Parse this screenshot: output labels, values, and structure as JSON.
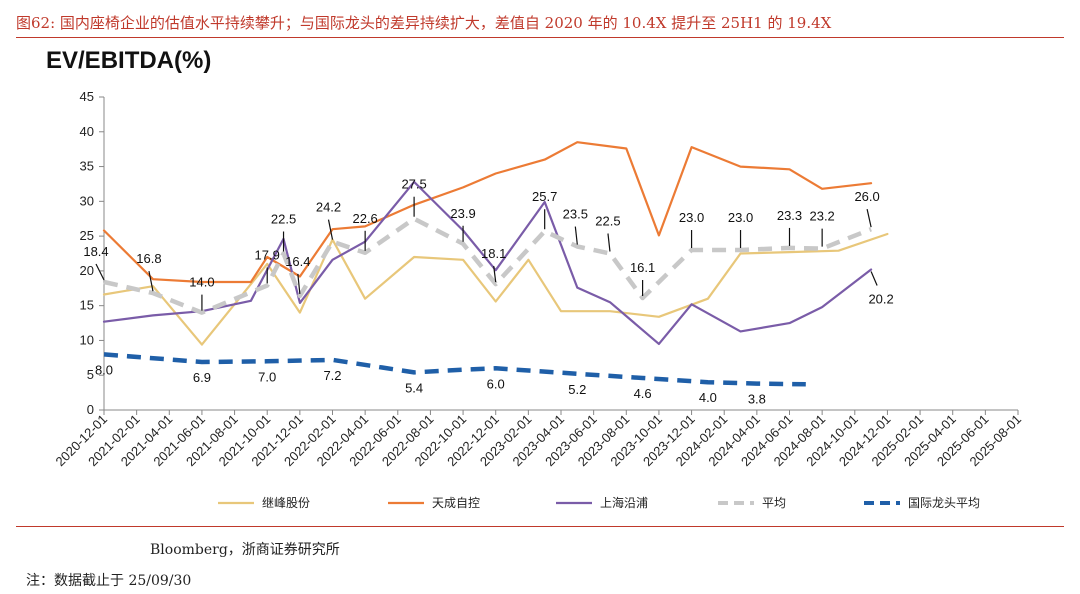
{
  "figure": {
    "title": "图62:  国内座椅企业的估值水平持续攀升；与国际龙头的差异持续扩大，差值自 2020 年的 10.4X 提升至 25H1 的 19.4X",
    "source": "Bloomberg，浙商证券研究所",
    "note": "注：数据截止于 25/09/30"
  },
  "chart_data": {
    "type": "line",
    "title": "EV/EBITDA(%)",
    "ylim": [
      0,
      45
    ],
    "yticks": [
      0,
      5,
      10,
      15,
      20,
      25,
      30,
      35,
      40,
      45
    ],
    "categories": [
      "2020-12-01",
      "2021-02-01",
      "2021-04-01",
      "2021-06-01",
      "2021-08-01",
      "2021-10-01",
      "2021-12-01",
      "2022-02-01",
      "2022-04-01",
      "2022-06-01",
      "2022-08-01",
      "2022-10-01",
      "2022-12-01",
      "2023-02-01",
      "2023-04-01",
      "2023-06-01",
      "2023-08-01",
      "2023-10-01",
      "2023-12-01",
      "2024-02-01",
      "2024-04-01",
      "2024-06-01",
      "2024-08-01",
      "2024-10-01",
      "2024-12-01",
      "2025-02-01",
      "2025-04-01",
      "2025-06-01",
      "2025-08-01"
    ],
    "series": [
      {
        "name": "继峰股份",
        "color": "#e8c77a",
        "dash": "solid",
        "width": 2.2,
        "points": [
          [
            0,
            16.6
          ],
          [
            1.5,
            17.8
          ],
          [
            3,
            9.4
          ],
          [
            5,
            21.0
          ],
          [
            6,
            14.0
          ],
          [
            7,
            24.5
          ],
          [
            8,
            16.0
          ],
          [
            9.5,
            22.0
          ],
          [
            11,
            21.6
          ],
          [
            12,
            15.6
          ],
          [
            13,
            21.6
          ],
          [
            14,
            14.2
          ],
          [
            15.5,
            14.2
          ],
          [
            17,
            13.4
          ],
          [
            18.5,
            16.0
          ],
          [
            19.5,
            22.5
          ],
          [
            21,
            22.7
          ],
          [
            22.5,
            22.9
          ],
          [
            24,
            25.3
          ]
        ]
      },
      {
        "name": "天成自控",
        "color": "#ec7b35",
        "dash": "solid",
        "width": 2.2,
        "points": [
          [
            0,
            25.8
          ],
          [
            1.5,
            18.8
          ],
          [
            3,
            18.4
          ],
          [
            4.5,
            18.4
          ],
          [
            5,
            22.0
          ],
          [
            6,
            19.2
          ],
          [
            7,
            26.0
          ],
          [
            8,
            26.4
          ],
          [
            9.5,
            29.5
          ],
          [
            11,
            32.0
          ],
          [
            12,
            34.0
          ],
          [
            13.5,
            36.0
          ],
          [
            14.5,
            38.5
          ],
          [
            16,
            37.6
          ],
          [
            17,
            25.1
          ],
          [
            18,
            37.8
          ],
          [
            19.5,
            35.0
          ],
          [
            21,
            34.6
          ],
          [
            22,
            31.8
          ],
          [
            23.5,
            32.6
          ]
        ]
      },
      {
        "name": "上海沿浦",
        "color": "#7a5ca8",
        "dash": "solid",
        "width": 2.2,
        "points": [
          [
            0,
            12.7
          ],
          [
            1.5,
            13.6
          ],
          [
            3,
            14.2
          ],
          [
            4.5,
            15.7
          ],
          [
            5.5,
            24.6
          ],
          [
            6,
            15.4
          ],
          [
            7,
            21.6
          ],
          [
            8,
            24.2
          ],
          [
            9.5,
            32.8
          ],
          [
            11,
            25.8
          ],
          [
            12,
            20.1
          ],
          [
            13.5,
            29.9
          ],
          [
            14.5,
            17.6
          ],
          [
            15.5,
            15.5
          ],
          [
            17,
            9.5
          ],
          [
            18,
            15.2
          ],
          [
            19.5,
            11.3
          ],
          [
            21,
            12.5
          ],
          [
            22,
            14.8
          ],
          [
            23.5,
            20.2
          ]
        ]
      },
      {
        "name": "平均",
        "color": "#c8c8c8",
        "dash": "dash",
        "width": 4.5,
        "points": [
          [
            0,
            18.4
          ],
          [
            1.5,
            16.8
          ],
          [
            3,
            14.0
          ],
          [
            5,
            17.9
          ],
          [
            5.5,
            22.5
          ],
          [
            6,
            16.4
          ],
          [
            7,
            24.2
          ],
          [
            8,
            22.6
          ],
          [
            9.5,
            27.5
          ],
          [
            11,
            23.9
          ],
          [
            12,
            18.1
          ],
          [
            13.5,
            25.7
          ],
          [
            14.5,
            23.5
          ],
          [
            15.5,
            22.5
          ],
          [
            16.5,
            16.1
          ],
          [
            18,
            23.0
          ],
          [
            19.5,
            23.0
          ],
          [
            21,
            23.3
          ],
          [
            22,
            23.2
          ],
          [
            23.5,
            26.0
          ]
        ]
      },
      {
        "name": "国际龙头平均",
        "color": "#1f5fa8",
        "dash": "dash",
        "width": 4.5,
        "points": [
          [
            0,
            8.0
          ],
          [
            3,
            6.9
          ],
          [
            5,
            7.0
          ],
          [
            7,
            7.2
          ],
          [
            9.5,
            5.4
          ],
          [
            11,
            5.8
          ],
          [
            12,
            6.0
          ],
          [
            14.5,
            5.2
          ],
          [
            16.5,
            4.6
          ],
          [
            18.5,
            4.0
          ],
          [
            20,
            3.8
          ],
          [
            21.5,
            3.7
          ]
        ]
      }
    ],
    "labels_avg": [
      {
        "x": 0,
        "y": 18.4,
        "text": "18.4"
      },
      {
        "x": 1.5,
        "y": 16.8,
        "text": "16.8"
      },
      {
        "x": 3,
        "y": 14.0,
        "text": "14.0"
      },
      {
        "x": 5,
        "y": 17.9,
        "text": "17.9"
      },
      {
        "x": 5.5,
        "y": 22.5,
        "text": "22.5"
      },
      {
        "x": 6,
        "y": 16.4,
        "text": "16.4"
      },
      {
        "x": 7,
        "y": 24.2,
        "text": "24.2"
      },
      {
        "x": 8,
        "y": 22.6,
        "text": "22.6"
      },
      {
        "x": 9.5,
        "y": 27.5,
        "text": "27.5"
      },
      {
        "x": 11,
        "y": 23.9,
        "text": "23.9"
      },
      {
        "x": 12,
        "y": 18.1,
        "text": "18.1"
      },
      {
        "x": 13.5,
        "y": 25.7,
        "text": "25.7"
      },
      {
        "x": 14.5,
        "y": 23.5,
        "text": "23.5"
      },
      {
        "x": 15.5,
        "y": 22.5,
        "text": "22.5"
      },
      {
        "x": 16.5,
        "y": 16.1,
        "text": "16.1"
      },
      {
        "x": 18,
        "y": 23.0,
        "text": "23.0"
      },
      {
        "x": 19.5,
        "y": 23.0,
        "text": "23.0"
      },
      {
        "x": 21,
        "y": 23.3,
        "text": "23.3"
      },
      {
        "x": 22,
        "y": 23.2,
        "text": "23.2"
      },
      {
        "x": 23.5,
        "y": 26.0,
        "text": "26.0"
      },
      {
        "x": 23.5,
        "y": 20.2,
        "text": "20.2"
      }
    ],
    "labels_intl": [
      {
        "x": 0,
        "y": 8.0,
        "text": "8.0"
      },
      {
        "x": 3,
        "y": 6.9,
        "text": "6.9"
      },
      {
        "x": 5,
        "y": 7.0,
        "text": "7.0"
      },
      {
        "x": 7,
        "y": 7.2,
        "text": "7.2"
      },
      {
        "x": 9.5,
        "y": 5.4,
        "text": "5.4"
      },
      {
        "x": 12,
        "y": 6.0,
        "text": "6.0"
      },
      {
        "x": 14.5,
        "y": 5.2,
        "text": "5.2"
      },
      {
        "x": 16.5,
        "y": 4.6,
        "text": "4.6"
      },
      {
        "x": 18.5,
        "y": 4.0,
        "text": "4.0"
      },
      {
        "x": 20,
        "y": 3.8,
        "text": "3.8"
      }
    ],
    "legend": [
      "继峰股份",
      "天成自控",
      "上海沿浦",
      "平均",
      "国际龙头平均"
    ]
  }
}
